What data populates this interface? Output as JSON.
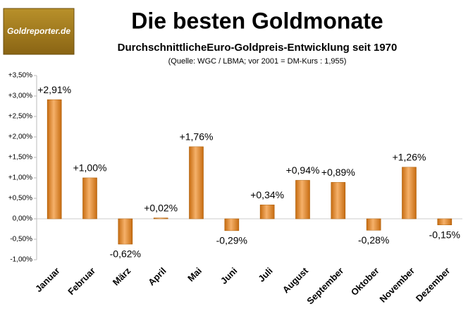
{
  "chart_data": {
    "type": "bar",
    "logo": "Goldreporter.de",
    "title": "Die besten Goldmonate",
    "subtitle": "DurchschnittlicheEuro-Goldpreis-Entwicklung seit 1970",
    "source": "(Quelle: WGC / LBMA; vor 2001 = DM-Kurs : 1,955)",
    "categories": [
      "Januar",
      "Februar",
      "März",
      "April",
      "Mai",
      "Juni",
      "Juli",
      "August",
      "September",
      "Oktober",
      "November",
      "Dezember"
    ],
    "values": [
      2.91,
      1.0,
      -0.62,
      0.02,
      1.76,
      -0.29,
      0.34,
      0.94,
      0.89,
      -0.28,
      1.26,
      -0.15
    ],
    "value_labels": [
      "+2,91%",
      "+1,00%",
      "-0,62%",
      "+0,02%",
      "+1,76%",
      "-0,29%",
      "+0,34%",
      "+0,94%",
      "+0,89%",
      "-0,28%",
      "+1,26%",
      "-0,15%"
    ],
    "color": "#f0871a",
    "ylim": [
      -1.0,
      3.5
    ],
    "yticks": [
      {
        "value": -1.0,
        "label": "-1,00%"
      },
      {
        "value": -0.5,
        "label": "-0,50%"
      },
      {
        "value": 0,
        "label": "0,00%"
      },
      {
        "value": 0.5,
        "label": "+0,50%"
      },
      {
        "value": 1.0,
        "label": "+1,00%"
      },
      {
        "value": 1.5,
        "label": "+1,50%"
      },
      {
        "value": 2.0,
        "label": "+2,00%"
      },
      {
        "value": 2.5,
        "label": "+2,50%"
      },
      {
        "value": 3.0,
        "label": "+3,00%"
      },
      {
        "value": 3.5,
        "label": "+3,50%"
      }
    ],
    "grid": false
  }
}
